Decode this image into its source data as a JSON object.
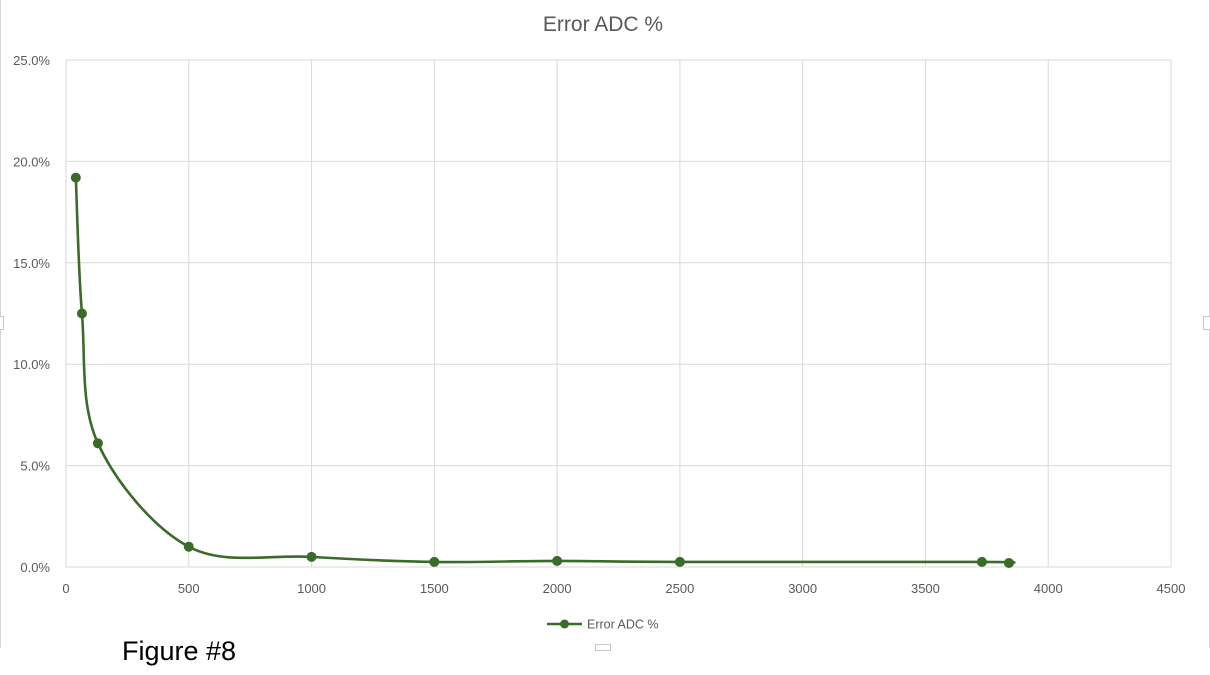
{
  "chart_data": {
    "type": "line",
    "title": "Error ADC %",
    "xlabel": "",
    "ylabel": "",
    "xlim": [
      0,
      4500
    ],
    "ylim": [
      0,
      25
    ],
    "x_ticks": [
      0,
      500,
      1000,
      1500,
      2000,
      2500,
      3000,
      3500,
      4000,
      4500
    ],
    "y_ticks": [
      0,
      5,
      10,
      15,
      20,
      25
    ],
    "y_tick_labels": [
      "0.0%",
      "5.0%",
      "10.0%",
      "15.0%",
      "20.0%",
      "25.0%"
    ],
    "grid": true,
    "smooth": true,
    "legend": "bottom",
    "series": [
      {
        "name": "Error ADC %",
        "color": "#3a6b2a",
        "points": [
          {
            "x": 40,
            "y": 19.2
          },
          {
            "x": 65,
            "y": 12.5
          },
          {
            "x": 130,
            "y": 6.1
          },
          {
            "x": 500,
            "y": 1.0
          },
          {
            "x": 1000,
            "y": 0.5
          },
          {
            "x": 1500,
            "y": 0.25
          },
          {
            "x": 2000,
            "y": 0.3
          },
          {
            "x": 2500,
            "y": 0.25
          },
          {
            "x": 3730,
            "y": 0.25
          },
          {
            "x": 3840,
            "y": 0.2
          }
        ]
      }
    ]
  },
  "figure_caption": "Figure #8"
}
